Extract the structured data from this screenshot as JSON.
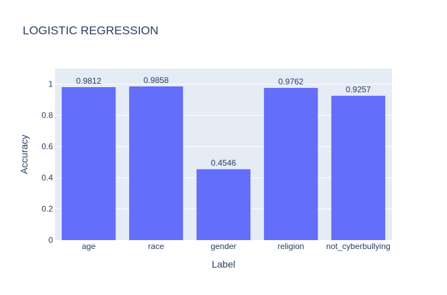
{
  "chart_data": {
    "type": "bar",
    "title": "LOGISTIC REGRESSION",
    "xlabel": "Label",
    "ylabel": "Accuracy",
    "categories": [
      "age",
      "race",
      "gender",
      "religion",
      "not_cyberbullying"
    ],
    "values": [
      0.9812,
      0.9858,
      0.4546,
      0.9762,
      0.9257
    ],
    "value_labels": [
      "0.9812",
      "0.9858",
      "0.4546",
      "0.9762",
      "0.9257"
    ],
    "yticks": [
      0,
      0.2,
      0.4,
      0.6,
      0.8,
      1
    ],
    "ytick_labels": [
      "0",
      "0.2",
      "0.4",
      "0.6",
      "0.8",
      "1"
    ],
    "ylim": [
      0,
      1.1
    ],
    "grid": true,
    "colors": {
      "bar": "#636efa",
      "plot_bg": "#e5ecf6",
      "grid": "#ffffff",
      "text": "#2a3f5f"
    }
  }
}
